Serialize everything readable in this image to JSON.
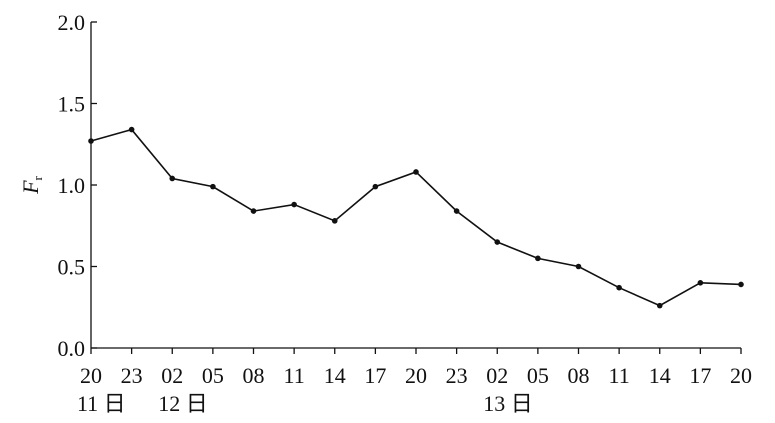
{
  "chart_data": {
    "type": "line",
    "y_label": {
      "main": "F",
      "sub": "r"
    },
    "categories": [
      "20",
      "23",
      "02",
      "05",
      "08",
      "11",
      "14",
      "17",
      "20",
      "23",
      "02",
      "05",
      "08",
      "11",
      "14",
      "17",
      "20"
    ],
    "day_labels": [
      "11 日",
      null,
      "12 日",
      null,
      null,
      null,
      null,
      null,
      null,
      null,
      "13 日",
      null,
      null,
      null,
      null,
      null,
      null
    ],
    "values": [
      1.27,
      1.34,
      1.04,
      0.99,
      0.84,
      0.88,
      0.78,
      0.99,
      1.08,
      0.84,
      0.65,
      0.55,
      0.5,
      0.37,
      0.26,
      0.4,
      0.39
    ],
    "color": "#111111",
    "ylim": [
      0,
      2.0
    ],
    "yticks": [
      {
        "value": 0,
        "label": "0.0"
      },
      {
        "value": 0.5,
        "label": "0.5"
      },
      {
        "value": 1.0,
        "label": "1.0"
      },
      {
        "value": 1.5,
        "label": "1.5"
      },
      {
        "value": 2.0,
        "label": "2.0"
      }
    ],
    "grid": false
  }
}
